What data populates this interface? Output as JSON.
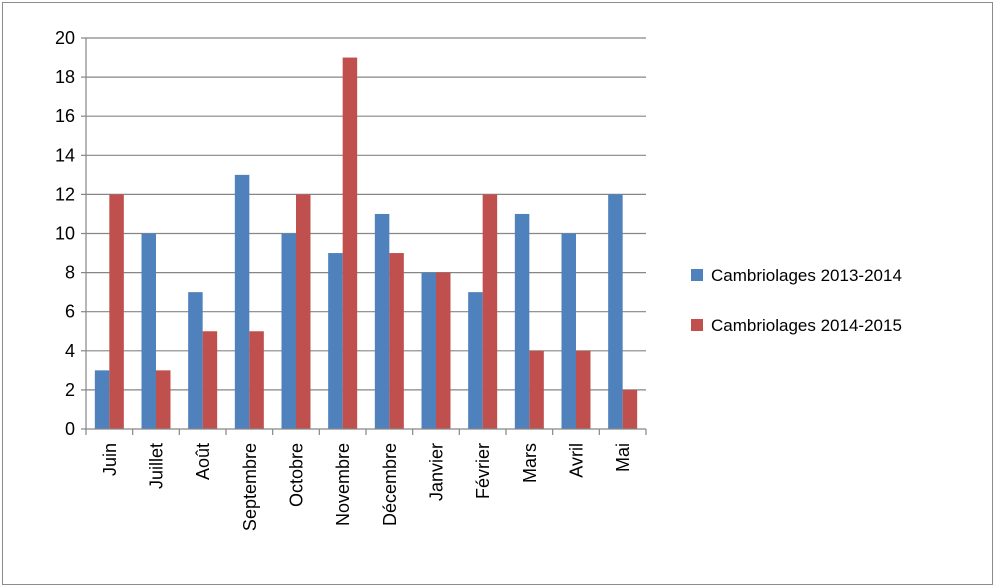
{
  "chart_data": {
    "type": "bar",
    "title": "",
    "xlabel": "",
    "ylabel": "",
    "categories": [
      "Juin",
      "Juillet",
      "Août",
      "Septembre",
      "Octobre",
      "Novembre",
      "Décembre",
      "Janvier",
      "Février",
      "Mars",
      "Avril",
      "Mai"
    ],
    "series": [
      {
        "name": "Cambriolages 2013-2014",
        "color": "#4f81bd",
        "values": [
          3,
          10,
          7,
          13,
          10,
          9,
          11,
          8,
          7,
          11,
          10,
          12
        ]
      },
      {
        "name": "Cambriolages 2014-2015",
        "color": "#c0504d",
        "values": [
          12,
          3,
          5,
          5,
          12,
          19,
          9,
          8,
          12,
          4,
          4,
          2
        ]
      }
    ],
    "ylim": [
      0,
      20
    ],
    "yticks": [
      0,
      2,
      4,
      6,
      8,
      10,
      12,
      14,
      16,
      18,
      20
    ],
    "grid": true,
    "legend_position": "right",
    "x_tick_rotation": "vertical"
  }
}
